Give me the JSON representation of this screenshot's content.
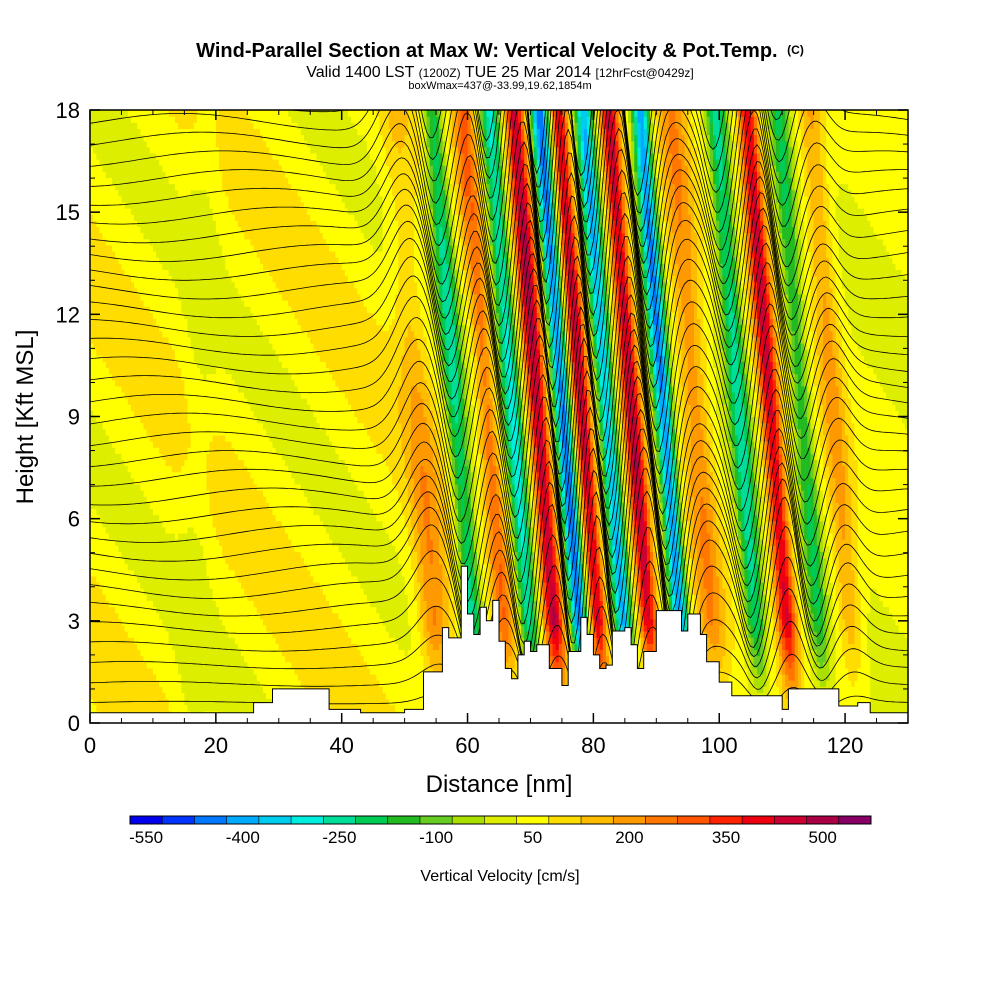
{
  "chart_data": {
    "type": "heatmap",
    "title": "Wind-Parallel Section at Max W: Vertical Velocity & Pot.Temp.",
    "title_mark": "(C)",
    "subtitle": {
      "prefix": "Valid 1400 LST",
      "utc": "(1200Z)",
      "date": "TUE 25 Mar 2014",
      "forecast": "[12hrFcst@0429z]"
    },
    "box_note": "boxWmax=437@-33.99,19.62,1854m",
    "xlabel": "Distance [nm]",
    "ylabel": "Height [Kft MSL]",
    "xlim": [
      0,
      130
    ],
    "ylim": [
      0,
      18
    ],
    "xticks": [
      "0",
      "20",
      "40",
      "60",
      "80",
      "100",
      "120"
    ],
    "yticks": [
      "0",
      "3",
      "6",
      "9",
      "12",
      "15",
      "18"
    ],
    "colorbar": {
      "label": "Vertical Velocity [cm/s]",
      "tick_labels": [
        "-550",
        "-400",
        "-250",
        "-100",
        "50",
        "200",
        "350",
        "500"
      ],
      "bins": [
        {
          "value": -550,
          "color": "#0000ee"
        },
        {
          "value": -500,
          "color": "#0033ff"
        },
        {
          "value": -450,
          "color": "#0077ff"
        },
        {
          "value": -400,
          "color": "#00aaff"
        },
        {
          "value": -350,
          "color": "#00ccee"
        },
        {
          "value": -300,
          "color": "#00eedd"
        },
        {
          "value": -250,
          "color": "#00dd99"
        },
        {
          "value": -200,
          "color": "#00cc55"
        },
        {
          "value": -150,
          "color": "#22bb22"
        },
        {
          "value": -100,
          "color": "#66cc22"
        },
        {
          "value": -50,
          "color": "#aae000"
        },
        {
          "value": 0,
          "color": "#ddee00"
        },
        {
          "value": 50,
          "color": "#ffff00"
        },
        {
          "value": 100,
          "color": "#ffdd00"
        },
        {
          "value": 150,
          "color": "#ffbb00"
        },
        {
          "value": 200,
          "color": "#ff9900"
        },
        {
          "value": 250,
          "color": "#ff7700"
        },
        {
          "value": 300,
          "color": "#ff5500"
        },
        {
          "value": 350,
          "color": "#ff2200"
        },
        {
          "value": 400,
          "color": "#ee0011"
        },
        {
          "value": 450,
          "color": "#cc0033"
        },
        {
          "value": 500,
          "color": "#aa0044"
        },
        {
          "value": 550,
          "color": "#880066"
        }
      ]
    },
    "terrain": [
      {
        "x": 0,
        "h": 0.3
      },
      {
        "x": 26,
        "h": 0.3
      },
      {
        "x": 26,
        "h": 0.6
      },
      {
        "x": 29,
        "h": 1.0
      },
      {
        "x": 36,
        "h": 1.0
      },
      {
        "x": 38,
        "h": 0.4
      },
      {
        "x": 43,
        "h": 0.3
      },
      {
        "x": 50,
        "h": 0.4
      },
      {
        "x": 53,
        "h": 1.5
      },
      {
        "x": 56,
        "h": 2.8
      },
      {
        "x": 57,
        "h": 2.5
      },
      {
        "x": 59,
        "h": 4.6
      },
      {
        "x": 60,
        "h": 3.2
      },
      {
        "x": 61,
        "h": 2.6
      },
      {
        "x": 62,
        "h": 3.4
      },
      {
        "x": 63,
        "h": 3.0
      },
      {
        "x": 64,
        "h": 3.6
      },
      {
        "x": 65,
        "h": 2.4
      },
      {
        "x": 66,
        "h": 1.6
      },
      {
        "x": 67,
        "h": 1.3
      },
      {
        "x": 68,
        "h": 2.0
      },
      {
        "x": 69,
        "h": 2.4
      },
      {
        "x": 70,
        "h": 2.1
      },
      {
        "x": 71,
        "h": 2.3
      },
      {
        "x": 73,
        "h": 1.6
      },
      {
        "x": 75,
        "h": 1.1
      },
      {
        "x": 76,
        "h": 2.1
      },
      {
        "x": 78,
        "h": 3.1
      },
      {
        "x": 79,
        "h": 2.6
      },
      {
        "x": 80,
        "h": 2.0
      },
      {
        "x": 81,
        "h": 1.6
      },
      {
        "x": 82,
        "h": 1.7
      },
      {
        "x": 83,
        "h": 2.7
      },
      {
        "x": 85,
        "h": 2.8
      },
      {
        "x": 86,
        "h": 2.3
      },
      {
        "x": 87,
        "h": 1.6
      },
      {
        "x": 88,
        "h": 2.1
      },
      {
        "x": 90,
        "h": 3.3
      },
      {
        "x": 93,
        "h": 3.3
      },
      {
        "x": 94,
        "h": 2.7
      },
      {
        "x": 95,
        "h": 3.2
      },
      {
        "x": 97,
        "h": 2.6
      },
      {
        "x": 98,
        "h": 1.8
      },
      {
        "x": 100,
        "h": 1.2
      },
      {
        "x": 102,
        "h": 0.8
      },
      {
        "x": 106,
        "h": 0.8
      },
      {
        "x": 110,
        "h": 0.4
      },
      {
        "x": 111,
        "h": 1.0
      },
      {
        "x": 117,
        "h": 1.0
      },
      {
        "x": 119,
        "h": 0.5
      },
      {
        "x": 122,
        "h": 0.6
      },
      {
        "x": 124,
        "h": 0.3
      },
      {
        "x": 130,
        "h": 0.3
      }
    ],
    "updrafts": [
      {
        "x": 56,
        "w": 2.5,
        "peak": 260
      },
      {
        "x": 67,
        "w": 1.6,
        "peak": 220
      },
      {
        "x": 75,
        "w": 1.6,
        "peak": 437
      },
      {
        "x": 82,
        "w": 1.4,
        "peak": 420
      },
      {
        "x": 90,
        "w": 1.5,
        "peak": 420
      },
      {
        "x": 100,
        "w": 2.4,
        "peak": 180
      },
      {
        "x": 112,
        "w": 1.6,
        "peak": 400
      },
      {
        "x": 122,
        "w": 2.0,
        "peak": 150
      }
    ],
    "downdrafts": [
      {
        "x": 62,
        "w": 1.6,
        "peak": -280
      },
      {
        "x": 71,
        "w": 1.5,
        "peak": -320
      },
      {
        "x": 79,
        "w": 1.4,
        "peak": -480
      },
      {
        "x": 86,
        "w": 1.4,
        "peak": -400
      },
      {
        "x": 95,
        "w": 1.4,
        "peak": -460
      },
      {
        "x": 107,
        "w": 1.6,
        "peak": -280
      },
      {
        "x": 117,
        "w": 1.5,
        "peak": -200
      }
    ],
    "theta_contours": {
      "count": 34,
      "interval_kft": 0.55
    }
  }
}
